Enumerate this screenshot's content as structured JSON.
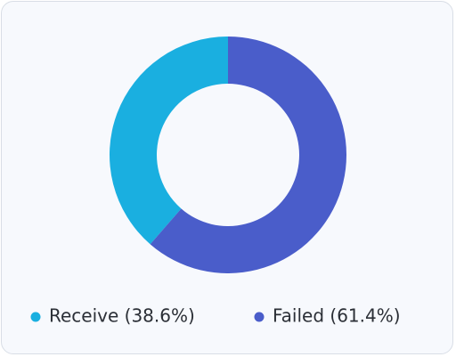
{
  "chart_data": {
    "type": "donut",
    "categories": [
      "Receive (38.6%)",
      "Failed (61.4%)"
    ],
    "values": [
      38.6,
      61.4
    ],
    "colors": [
      "#1aafe0",
      "#4a5dca"
    ],
    "legend": "bottom"
  }
}
